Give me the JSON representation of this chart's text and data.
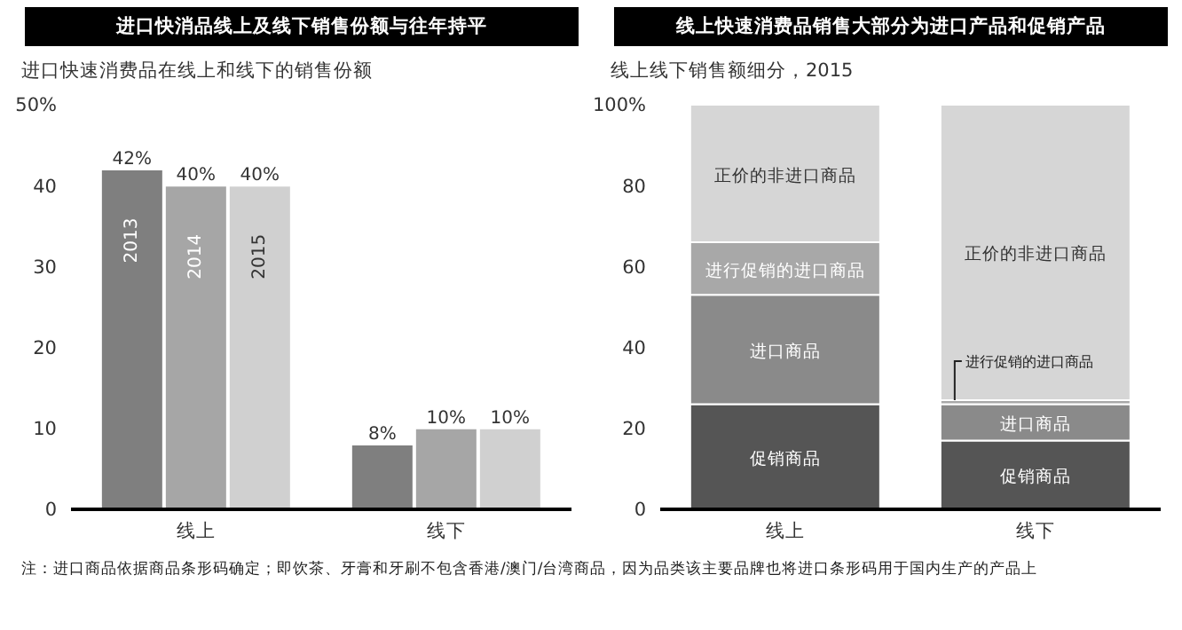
{
  "chart_data": [
    {
      "type": "bar",
      "title": "进口快消品线上及线下销售份额与往年持平",
      "subtitle": "进口快速消费品在线上和线下的销售份额",
      "categories": [
        "线上",
        "线下"
      ],
      "series": [
        {
          "name": "2013",
          "color": "#7f7f7f",
          "values": [
            42,
            8
          ],
          "value_labels": [
            "42%",
            "8%"
          ]
        },
        {
          "name": "2014",
          "color": "#a6a6a6",
          "values": [
            40,
            10
          ],
          "value_labels": [
            "40%",
            "10%"
          ]
        },
        {
          "name": "2015",
          "color": "#d0d0d0",
          "values": [
            40,
            10
          ],
          "value_labels": [
            "40%",
            "10%"
          ]
        }
      ],
      "ylim": [
        0,
        50
      ],
      "yticks": [
        0,
        10,
        20,
        30,
        40,
        {
          "value": 50,
          "label": "50%"
        }
      ],
      "grid": false,
      "legend": false,
      "annotations": [
        "注：进口商品依据商品条形码确定；即饮茶、牙膏和牙刷不包含香港/澳门/台湾商品，因为品类该主要品牌也将进口条形码用于国内生产的产品上"
      ]
    },
    {
      "type": "bar",
      "title": "线上快速消费品销售大部分为进口产品和促销产品",
      "subtitle": "线上线下销售额细分，2015",
      "categories": [
        "线上",
        "线下"
      ],
      "stacked": true,
      "series": [
        {
          "name": "促销商品",
          "color": "#555555",
          "values": [
            26,
            17
          ]
        },
        {
          "name": "进口商品",
          "color": "#8a8a8a",
          "values": [
            27,
            9
          ]
        },
        {
          "name": "进行促销的进口商品",
          "color": "#a8a8a8",
          "values": [
            13,
            1
          ]
        },
        {
          "name": "正价的非进口商品",
          "color": "#d6d6d6",
          "values": [
            34,
            73
          ]
        }
      ],
      "ylim": [
        0,
        100
      ],
      "yticks": [
        0,
        20,
        40,
        60,
        80,
        {
          "value": 100,
          "label": "100%"
        }
      ],
      "grid": false,
      "legend": false
    }
  ]
}
